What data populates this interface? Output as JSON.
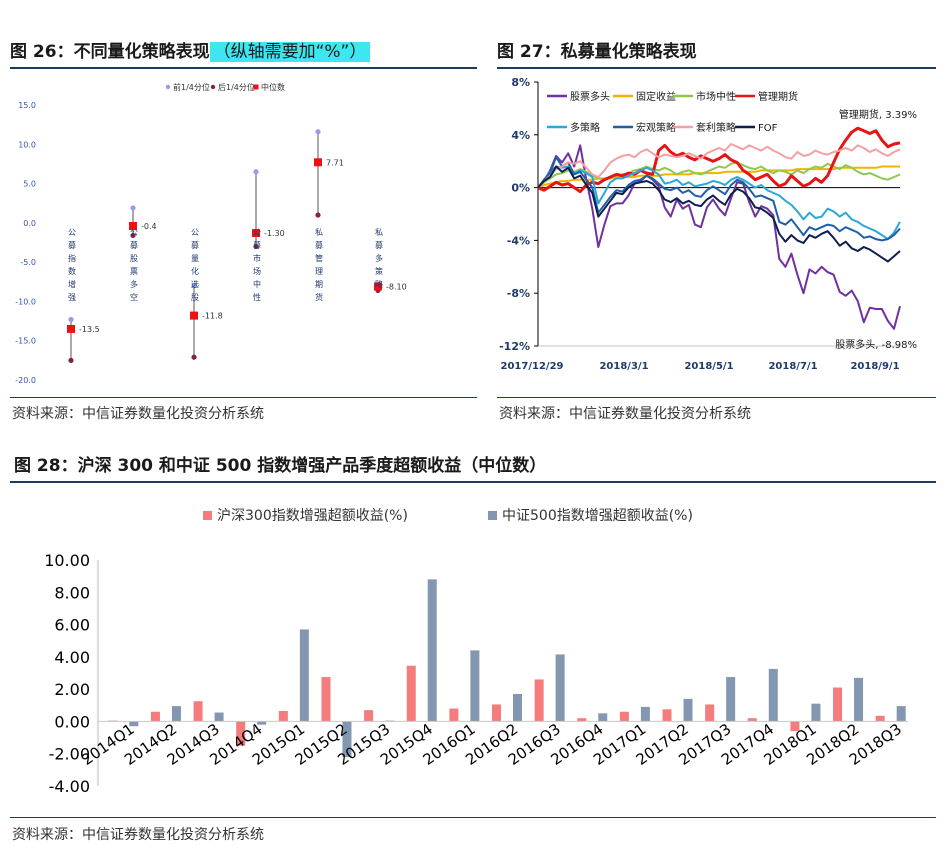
{
  "fig26": {
    "title_prefix": "图 26：不同量化策略表现",
    "title_highlight": "（纵轴需要加“%”）",
    "source": "资料来源：中信证券数量化投资分析系统",
    "legend": [
      "前1/4分位",
      "后1/4分位",
      "中位数"
    ],
    "colors": {
      "q1": "#9999ee",
      "q3": "#882244",
      "median": "#ee1111",
      "line": "#555555"
    },
    "chart_data": {
      "type": "range",
      "ylim": [
        -20,
        15
      ],
      "yticks": [
        "15.0",
        "10.0",
        "5.0",
        "0.0",
        "-5.0",
        "-10.0",
        "-15.0",
        "-20.0"
      ],
      "categories": [
        "公募指数增强",
        "公募股票多空",
        "公募量化选股",
        "公募市场中性",
        "私募管理期货",
        "私募多策略"
      ],
      "q1": [
        -12.3,
        1.9,
        -8.0,
        6.5,
        11.6,
        -8.5
      ],
      "q3": [
        -17.5,
        -1.6,
        -17.1,
        -3.0,
        1.0,
        -8.6
      ],
      "median": [
        -13.5,
        -0.4,
        -11.8,
        -1.3,
        7.71,
        -8.1
      ],
      "labels": [
        "-13.5",
        "-0.4",
        "-11.8",
        "-1.30",
        "7.71",
        "-8.10"
      ]
    }
  },
  "fig27": {
    "title": "图 27：私募量化策略表现",
    "source": "资料来源：中信证券数量化投资分析系统",
    "annotations": {
      "top": "管理期货, 3.39%",
      "bottom": "股票多头, -8.98%"
    },
    "chart_data": {
      "type": "line",
      "ylim": [
        -12,
        8
      ],
      "yticks": [
        "8%",
        "4%",
        "0%",
        "-4%",
        "-8%",
        "-12%"
      ],
      "xticks": [
        "2017/12/29",
        "2018/3/1",
        "2018/5/1",
        "2018/7/1",
        "2018/9/1"
      ],
      "x_range": [
        "2017/12/29",
        "2018/9/28"
      ],
      "series": [
        {
          "name": "股票多头",
          "color": "#7030a0",
          "values": [
            0,
            0.5,
            1.3,
            2.4,
            1.9,
            2.6,
            1.6,
            3.2,
            0.6,
            -1.6,
            -4.5,
            -2.8,
            -1.4,
            -1.2,
            -1.2,
            -0.6,
            0.3,
            0.5,
            0.9,
            0.6,
            0.1,
            -1.5,
            -2.2,
            -0.9,
            -1.6,
            -1.3,
            -2.8,
            -3.0,
            -1.5,
            -0.9,
            -1.6,
            -2.1,
            -0.8,
            0.4,
            0.3,
            -1.1,
            -2.2,
            -1.4,
            -1.6,
            -2.1,
            -5.4,
            -6.0,
            -5.0,
            -6.6,
            -8.0,
            -6.2,
            -6.5,
            -6.0,
            -6.4,
            -6.6,
            -7.9,
            -8.2,
            -7.8,
            -8.6,
            -10.2,
            -9.1,
            -9.2,
            -9.2,
            -10.1,
            -10.7,
            -8.98
          ]
        },
        {
          "name": "固定收益",
          "color": "#f0b400",
          "values": [
            0,
            0.2,
            0.3,
            0.4,
            0.5,
            0.5,
            0.6,
            0.6,
            0.6,
            0.6,
            0.7,
            0.7,
            0.7,
            0.8,
            0.8,
            0.8,
            0.8,
            0.9,
            0.9,
            0.9,
            0.9,
            1.0,
            1.0,
            1.0,
            1.0,
            1.0,
            1.1,
            1.1,
            1.1,
            1.1,
            1.1,
            1.2,
            1.2,
            1.2,
            1.2,
            1.2,
            1.2,
            1.3,
            1.3,
            1.3,
            1.3,
            1.3,
            1.3,
            1.4,
            1.4,
            1.4,
            1.4,
            1.4,
            1.4,
            1.4,
            1.5,
            1.5,
            1.5,
            1.5,
            1.5,
            1.5,
            1.5,
            1.6,
            1.6,
            1.6,
            1.6
          ]
        },
        {
          "name": "市场中性",
          "color": "#8fc84e",
          "values": [
            0,
            0.4,
            0.7,
            1.0,
            1.1,
            1.3,
            1.2,
            1.4,
            1.2,
            0.9,
            0.7,
            0.6,
            0.8,
            0.9,
            1.0,
            1.1,
            1.3,
            1.4,
            1.6,
            1.4,
            1.3,
            1.5,
            1.3,
            1.0,
            1.2,
            1.3,
            1.1,
            1.0,
            1.2,
            1.4,
            1.6,
            1.5,
            1.8,
            1.9,
            1.7,
            1.5,
            1.4,
            1.6,
            1.3,
            1.1,
            1.3,
            1.2,
            1.0,
            1.3,
            1.1,
            1.4,
            1.6,
            1.5,
            1.8,
            1.6,
            1.4,
            1.7,
            1.5,
            1.2,
            1.0,
            1.1,
            0.9,
            0.7,
            0.6,
            0.8,
            1.0
          ]
        },
        {
          "name": "管理期货",
          "color": "#e61414",
          "values": [
            0,
            -0.2,
            0.1,
            0.4,
            0.2,
            0.3,
            0.0,
            -0.3,
            0.2,
            0.4,
            0.3,
            0.6,
            0.8,
            1.0,
            0.9,
            1.1,
            1.0,
            1.3,
            1.1,
            1.0,
            2.8,
            3.2,
            2.7,
            2.4,
            2.6,
            2.3,
            2.1,
            2.4,
            2.2,
            2.0,
            2.2,
            2.5,
            2.1,
            1.9,
            1.3,
            1.0,
            0.6,
            0.8,
            1.0,
            0.5,
            0.1,
            0.3,
            0.9,
            0.5,
            0.1,
            0.3,
            0.7,
            0.4,
            0.9,
            1.9,
            2.9,
            3.6,
            4.2,
            4.5,
            4.3,
            4.1,
            4.3,
            3.6,
            3.1,
            3.3,
            3.39
          ]
        },
        {
          "name": "多策略",
          "color": "#2aa8d8",
          "values": [
            0,
            0.6,
            1.2,
            1.6,
            1.5,
            1.6,
            1.1,
            1.3,
            1.1,
            0.8,
            -1.2,
            -0.4,
            0.4,
            0.7,
            0.7,
            0.9,
            1.1,
            1.3,
            1.5,
            1.3,
            1.0,
            0.3,
            0.4,
            0.6,
            0.2,
            0.4,
            0.1,
            0.2,
            0.3,
            0.5,
            0.4,
            0.2,
            0.6,
            0.8,
            0.6,
            0.3,
            0.0,
            0.2,
            -0.2,
            -0.4,
            -0.6,
            -1.0,
            -1.3,
            -1.8,
            -2.4,
            -1.9,
            -2.3,
            -2.2,
            -1.6,
            -1.8,
            -2.2,
            -1.9,
            -2.4,
            -2.6,
            -2.9,
            -3.1,
            -3.3,
            -3.6,
            -3.9,
            -3.4,
            -2.6
          ]
        },
        {
          "name": "宏观策略",
          "color": "#1f5fa6",
          "values": [
            0,
            0.6,
            1.1,
            2.3,
            1.6,
            1.9,
            1.0,
            1.2,
            0.6,
            0.0,
            -1.9,
            -1.3,
            -0.7,
            -0.2,
            -0.3,
            0.2,
            0.5,
            0.6,
            0.9,
            0.7,
            0.3,
            -0.1,
            -0.2,
            0.0,
            -0.4,
            -0.2,
            -0.6,
            -0.7,
            -0.2,
            0.1,
            -0.2,
            -0.5,
            0.2,
            0.6,
            0.4,
            -0.1,
            -0.7,
            -0.6,
            -0.8,
            -1.0,
            -2.6,
            -2.8,
            -2.4,
            -3.0,
            -3.6,
            -3.0,
            -3.2,
            -3.0,
            -2.8,
            -2.9,
            -3.3,
            -3.0,
            -3.2,
            -3.4,
            -3.8,
            -3.7,
            -3.9,
            -4.0,
            -3.9,
            -3.6,
            -3.1
          ]
        },
        {
          "name": "套利策略",
          "color": "#f4a0a0",
          "values": [
            0,
            0.5,
            0.9,
            1.4,
            1.6,
            1.9,
            1.8,
            2.0,
            1.5,
            1.0,
            0.8,
            1.3,
            1.9,
            2.2,
            2.4,
            2.5,
            2.3,
            2.7,
            2.9,
            2.6,
            2.3,
            2.5,
            2.4,
            2.3,
            2.4,
            2.6,
            2.4,
            2.2,
            2.6,
            2.8,
            3.0,
            2.8,
            3.3,
            3.1,
            2.9,
            3.2,
            3.0,
            2.8,
            3.1,
            2.8,
            2.6,
            2.3,
            2.2,
            2.7,
            2.4,
            2.5,
            2.8,
            2.6,
            2.5,
            2.7,
            2.8,
            3.0,
            2.8,
            3.2,
            3.0,
            2.7,
            2.9,
            2.6,
            2.4,
            2.7,
            2.9
          ]
        },
        {
          "name": "FOF",
          "color": "#0d1f4d",
          "values": [
            0,
            0.5,
            0.8,
            1.6,
            1.2,
            1.5,
            0.7,
            0.9,
            0.2,
            -0.4,
            -2.2,
            -1.6,
            -1.0,
            -0.4,
            -0.5,
            0.0,
            0.3,
            0.4,
            0.5,
            0.3,
            -0.2,
            -0.9,
            -1.1,
            -0.8,
            -1.2,
            -1.0,
            -1.3,
            -1.4,
            -0.9,
            -0.6,
            -1.0,
            -1.3,
            -0.5,
            -0.1,
            -0.3,
            -0.8,
            -1.5,
            -1.6,
            -1.9,
            -2.3,
            -3.5,
            -4.1,
            -3.6,
            -4.0,
            -4.2,
            -3.6,
            -3.8,
            -3.5,
            -3.3,
            -3.8,
            -4.4,
            -4.1,
            -4.6,
            -4.8,
            -4.5,
            -4.7,
            -5.0,
            -5.3,
            -5.6,
            -5.2,
            -4.8
          ]
        }
      ]
    }
  },
  "fig28": {
    "title": "图 28：沪深 300 和中证 500 指数增强产品季度超额收益（中位数）",
    "source": "资料来源：中信证券数量化投资分析系统",
    "chart_data": {
      "type": "bar",
      "ylim": [
        -4,
        10
      ],
      "yticks": [
        "10.00",
        "8.00",
        "6.00",
        "4.00",
        "2.00",
        "0.00",
        "-2.00",
        "-4.00"
      ],
      "categories": [
        "2014Q1",
        "2014Q2",
        "2014Q3",
        "2014Q4",
        "2015Q1",
        "2015Q2",
        "2015Q3",
        "2015Q4",
        "2016Q1",
        "2016Q2",
        "2016Q3",
        "2016Q4",
        "2017Q1",
        "2017Q2",
        "2017Q3",
        "2017Q4",
        "2018Q1",
        "2018Q2",
        "2018Q3"
      ],
      "series": [
        {
          "name": "沪深300指数增强超额收益(%)",
          "color": "#f47c7c",
          "values": [
            0.05,
            0.6,
            1.25,
            -1.5,
            0.65,
            2.75,
            0.7,
            3.45,
            0.8,
            1.05,
            2.6,
            0.2,
            0.6,
            0.75,
            1.05,
            0.2,
            -0.6,
            2.1,
            0.35
          ]
        },
        {
          "name": "中证500指数增强超额收益(%)",
          "color": "#8497b0",
          "values": [
            -0.3,
            0.95,
            0.55,
            -0.2,
            5.7,
            -2.2,
            0.05,
            8.8,
            4.4,
            1.7,
            4.15,
            0.5,
            0.9,
            1.4,
            2.75,
            3.25,
            1.1,
            2.7,
            0.95
          ]
        }
      ]
    }
  }
}
